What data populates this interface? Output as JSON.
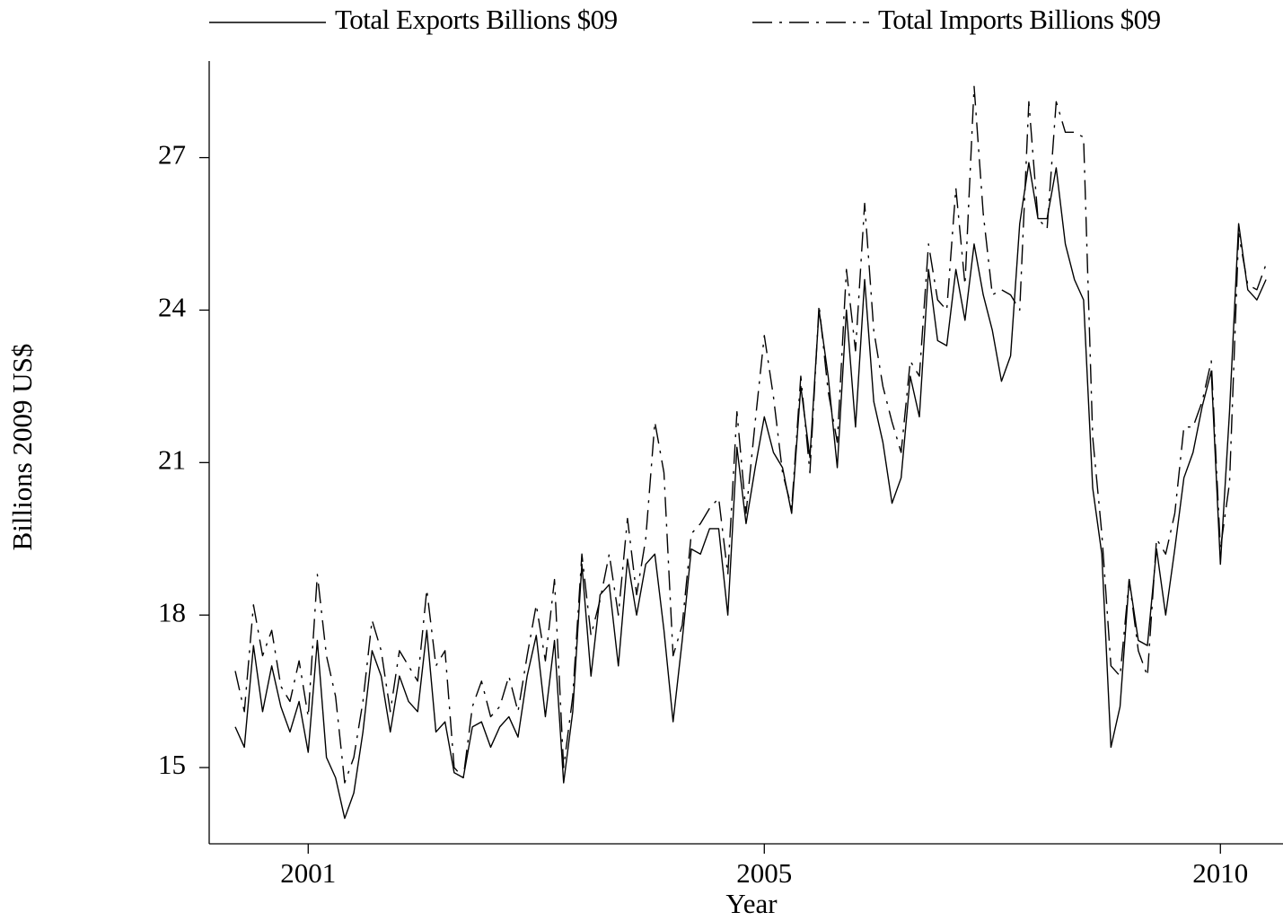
{
  "chart_data": {
    "type": "line",
    "x_label": "Year",
    "y_label": "Billions 2009 US$",
    "categories": [
      null,
      null,
      null,
      null,
      null,
      null,
      null,
      null,
      "2001",
      null,
      null,
      null,
      null,
      null,
      null,
      null,
      null,
      null,
      null,
      null,
      null,
      null,
      null,
      null,
      null,
      null,
      null,
      null,
      null,
      null,
      null,
      null,
      null,
      null,
      null,
      null,
      null,
      null,
      null,
      null,
      null,
      null,
      null,
      null,
      null,
      null,
      null,
      null,
      null,
      null,
      null,
      null,
      null,
      null,
      null,
      null,
      null,
      null,
      "2005",
      null,
      null,
      null,
      null,
      null,
      null,
      null,
      null,
      null,
      null,
      null,
      null,
      null,
      null,
      null,
      null,
      null,
      null,
      null,
      null,
      null,
      null,
      null,
      null,
      null,
      null,
      null,
      null,
      null,
      null,
      null,
      null,
      null,
      null,
      null,
      null,
      null,
      null,
      null,
      null,
      null,
      null,
      null,
      null,
      null,
      null,
      null,
      null,
      null,
      "2010",
      null,
      null,
      null,
      null,
      null
    ],
    "series": [
      {
        "name": "Total Exports Billions $09",
        "color": "#000000",
        "linestyle": "solid",
        "values": [
          15.8,
          15.4,
          17.4,
          16.1,
          17.0,
          16.2,
          15.7,
          16.3,
          15.3,
          17.5,
          15.2,
          14.8,
          14.0,
          14.5,
          15.7,
          17.3,
          16.8,
          15.7,
          16.8,
          16.3,
          16.1,
          17.7,
          15.7,
          15.9,
          14.9,
          14.8,
          15.8,
          15.9,
          15.4,
          15.8,
          16.0,
          15.6,
          16.8,
          17.6,
          16.0,
          17.5,
          14.7,
          16.1,
          19.0,
          16.8,
          18.4,
          18.6,
          17.0,
          19.1,
          18.0,
          19.0,
          19.2,
          17.7,
          15.9,
          17.5,
          19.3,
          19.2,
          19.7,
          19.7,
          18.0,
          21.3,
          19.8,
          20.9,
          21.9,
          21.2,
          20.9,
          20.0,
          22.5,
          21.1,
          24.0,
          22.7,
          20.9,
          24.0,
          21.7,
          24.6,
          22.2,
          21.4,
          20.2,
          20.7,
          22.7,
          21.9,
          24.8,
          23.4,
          23.3,
          24.8,
          23.8,
          25.3,
          24.3,
          23.6,
          22.6,
          23.1,
          25.7,
          26.9,
          25.8,
          25.8,
          26.8,
          25.3,
          24.6,
          24.2,
          20.5,
          19.2,
          15.4,
          16.2,
          18.7,
          17.5,
          17.4,
          19.3,
          18.0,
          19.3,
          20.7,
          21.2,
          22.1,
          22.8,
          19.0,
          22.0,
          25.7,
          24.4,
          24.2,
          24.6
        ]
      },
      {
        "name": "Total Imports Billions $09",
        "color": "#000000",
        "linestyle": "dashdot",
        "values": [
          16.9,
          16.1,
          18.2,
          17.2,
          17.7,
          16.6,
          16.3,
          17.1,
          16.0,
          18.8,
          17.2,
          16.4,
          14.7,
          15.2,
          16.3,
          17.9,
          17.3,
          16.1,
          17.3,
          17.0,
          16.7,
          18.5,
          17.0,
          17.3,
          15.0,
          14.8,
          16.2,
          16.7,
          16.0,
          16.2,
          16.8,
          16.1,
          17.2,
          18.2,
          17.1,
          18.7,
          15.0,
          16.4,
          19.2,
          17.6,
          18.3,
          19.2,
          18.0,
          19.9,
          18.4,
          19.5,
          21.8,
          20.8,
          17.2,
          17.8,
          19.6,
          19.8,
          20.1,
          20.3,
          18.8,
          22.0,
          20.0,
          21.8,
          23.5,
          22.3,
          20.8,
          20.1,
          22.7,
          20.8,
          24.1,
          22.4,
          21.4,
          24.8,
          23.2,
          26.1,
          23.6,
          22.5,
          21.8,
          21.2,
          23.0,
          22.7,
          25.3,
          24.2,
          24.0,
          26.4,
          24.5,
          28.4,
          25.9,
          24.3,
          24.4,
          24.3,
          24.0,
          28.1,
          25.8,
          25.6,
          28.1,
          27.5,
          27.5,
          27.4,
          21.5,
          19.6,
          17.0,
          16.8,
          18.7,
          17.3,
          16.8,
          19.5,
          19.2,
          20.0,
          21.7,
          21.7,
          22.2,
          23.0,
          19.3,
          20.6,
          25.5,
          24.5,
          24.4,
          24.9
        ]
      }
    ],
    "ylim": [
      13.5,
      28.9
    ],
    "yticks": [
      15,
      18,
      21,
      24,
      27
    ],
    "grid": false,
    "legend": "top"
  }
}
